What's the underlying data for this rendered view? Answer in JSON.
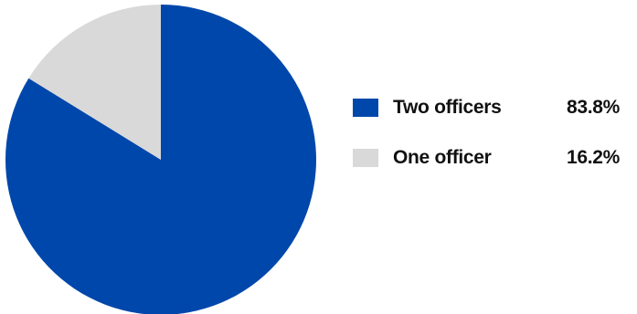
{
  "chart_data": {
    "type": "pie",
    "slices": [
      {
        "label": "Two officers",
        "value": 83.8,
        "display": "83.8%",
        "color": "#0047AB"
      },
      {
        "label": "One officer",
        "value": 16.2,
        "display": "16.2%",
        "color": "#D9D9D9"
      }
    ],
    "legend_position": "right"
  }
}
